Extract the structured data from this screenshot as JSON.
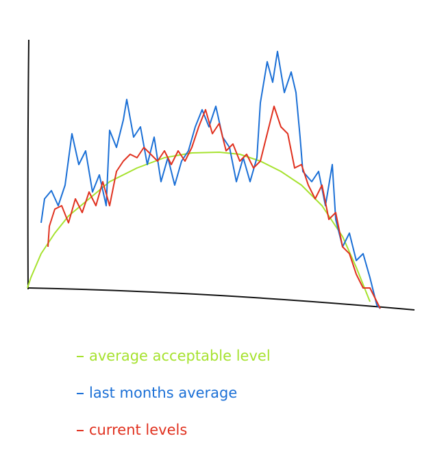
{
  "chart_data": {
    "type": "line",
    "xlim": [
      0,
      565
    ],
    "ylim": [
      -36,
      365
    ],
    "series": [
      {
        "name": "average acceptable level",
        "color": "#a6e22e",
        "x": [
          0,
          5,
          20,
          40,
          60,
          90,
          120,
          160,
          200,
          240,
          280,
          310,
          340,
          370,
          400,
          430,
          460,
          480,
          500
        ],
        "values": [
          0,
          15,
          50,
          80,
          105,
          130,
          155,
          175,
          190,
          197,
          198,
          195,
          185,
          170,
          150,
          120,
          75,
          30,
          -20
        ]
      },
      {
        "name": "last months average",
        "color": "#1a6fd6",
        "x": [
          20,
          25,
          35,
          45,
          55,
          65,
          75,
          85,
          95,
          105,
          115,
          120,
          130,
          140,
          145,
          155,
          165,
          175,
          185,
          195,
          205,
          215,
          225,
          235,
          245,
          255,
          265,
          275,
          285,
          295,
          305,
          315,
          325,
          335,
          340,
          350,
          358,
          365,
          375,
          385,
          392,
          398,
          402,
          415,
          425,
          435,
          445,
          450,
          460,
          470,
          480,
          490,
          500,
          510,
          515
        ],
        "values": [
          95,
          130,
          142,
          120,
          150,
          225,
          180,
          200,
          140,
          165,
          120,
          230,
          205,
          245,
          275,
          220,
          235,
          180,
          220,
          155,
          190,
          150,
          185,
          200,
          235,
          260,
          235,
          265,
          220,
          205,
          155,
          190,
          155,
          190,
          270,
          330,
          300,
          345,
          285,
          315,
          285,
          220,
          170,
          155,
          170,
          120,
          180,
          100,
          60,
          80,
          40,
          50,
          15,
          -25,
          -30
        ]
      },
      {
        "name": "current levels",
        "color": "#e0301e",
        "x": [
          30,
          32,
          40,
          50,
          60,
          70,
          80,
          90,
          100,
          110,
          120,
          130,
          140,
          150,
          160,
          170,
          180,
          190,
          200,
          210,
          220,
          230,
          240,
          250,
          260,
          270,
          280,
          290,
          300,
          310,
          320,
          330,
          340,
          350,
          360,
          370,
          380,
          390,
          400,
          410,
          420,
          430,
          440,
          450,
          460,
          470,
          480,
          490,
          500,
          515
        ],
        "values": [
          60,
          90,
          115,
          120,
          95,
          130,
          110,
          140,
          120,
          155,
          120,
          170,
          185,
          195,
          190,
          205,
          195,
          185,
          200,
          180,
          200,
          185,
          205,
          235,
          260,
          225,
          240,
          200,
          210,
          185,
          195,
          175,
          185,
          225,
          265,
          235,
          225,
          175,
          180,
          150,
          130,
          150,
          100,
          110,
          60,
          50,
          20,
          0,
          0,
          -30
        ]
      }
    ]
  }
}
